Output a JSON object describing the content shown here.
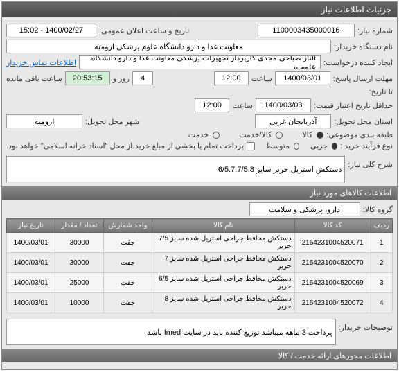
{
  "title": "جزئیات اطلاعات نیاز",
  "f": {
    "reqNoLbl": "شماره نیاز:",
    "reqNo": "1100003435000016",
    "pubLbl": "تاریخ و ساعت اعلان عمومی:",
    "pubDate": "1400/02/27 - 15:02",
    "orgLbl": "نام دستگاه خریدار:",
    "org": "معاونت غذا و دارو دانشگاه علوم پزشکی ارومیه",
    "creatorLbl": "ایجاد کننده درخواست:",
    "creator": "الناز صباحی مجدی کارپرداز تجهیزات پزشکی معاونت غذا و دارو دانشگاه علوم پز",
    "contactLbl": "اطلاعات تماس خریدار",
    "deadlineLbl": "مهلت ارسال پاسخ:",
    "deadlineDate": "1400/03/01",
    "deadlineHr": "12:00",
    "daysLbl": "ساعت",
    "days": "4",
    "remainLbl": "روز و",
    "remain": "20:53:15",
    "remainSfx": "ساعت باقی مانده",
    "toLbl": "تا تاریخ:",
    "validLbl": "حداقل تاریخ اعتبار قیمت:",
    "validDate": "1400/03/03",
    "validHr": "12:00",
    "hrLbl": "ساعت",
    "provLbl": "استان محل تحویل:",
    "prov": "آذربایجان غربی",
    "cityLbl": "شهر محل تحویل:",
    "city": "ارومیه",
    "catLbl": "طبقه بندی موضوعی:",
    "cat1": "کالا",
    "cat2": "کالا/خدمت",
    "cat3": "خدمت",
    "procLbl": "نوع فرآیند خرید :",
    "proc1": "جزیی",
    "proc2": "متوسط",
    "procNote": "پرداخت تمام یا بخشی از مبلغ خرید،از محل \"اسناد خزانه اسلامی\" خواهد بود.",
    "descLbl": "شرح کلی نیاز:",
    "desc": "دستکش استریل حریر سایز 6/5.7.7/5.8",
    "itemsHdr": "اطلاعات کالاهای مورد نیاز",
    "grpLbl": "گروه کالا:",
    "grp": "دارو، پزشکی و سلامت",
    "th": {
      "idx": "ردیف",
      "code": "کد کالا",
      "name": "نام کالا",
      "unit": "واحد شمارش",
      "qty": "تعداد / مقدار",
      "date": "تاریخ نیاز"
    },
    "rows": [
      {
        "i": "1",
        "c": "2164231004520071",
        "n": "دستکش محافظ جراحی استریل شده سایز 7/5 حریر",
        "u": "جفت",
        "q": "30000",
        "d": "1400/03/01"
      },
      {
        "i": "2",
        "c": "2164231004520070",
        "n": "دستکش محافظ جراحی استریل شده سایز 7 حریر",
        "u": "جفت",
        "q": "30000",
        "d": "1400/03/01"
      },
      {
        "i": "3",
        "c": "2164231004520069",
        "n": "دستکش محافظ جراحی استریل شده سایز 6/5 حریر",
        "u": "جفت",
        "q": "25000",
        "d": "1400/03/01"
      },
      {
        "i": "4",
        "c": "2164231004520072",
        "n": "دستکش محافظ جراحی استریل شده سایز 8 حریر",
        "u": "جفت",
        "q": "10000",
        "d": "1400/03/01"
      }
    ],
    "buyerNoteLbl": "توضیحات خریدار:",
    "buyerNote": "پرداخت 3 ماهه میباشد توزیع کننده باید در سایت Imed باشد",
    "permHdr": "اطلاعات مجوزهای ارائه خدمت / کالا"
  }
}
